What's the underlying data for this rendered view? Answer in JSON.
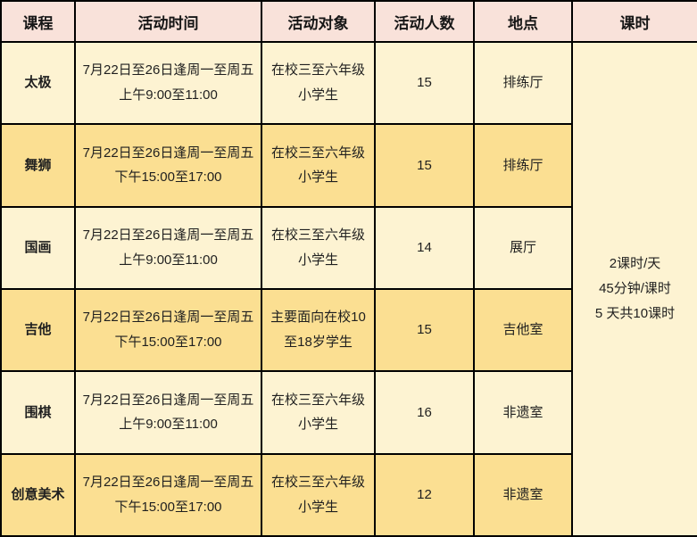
{
  "chart_data": {
    "type": "table",
    "columns": [
      "课程",
      "活动时间",
      "活动对象",
      "活动人数",
      "地点",
      "课时"
    ],
    "rows": [
      [
        "太极",
        "7月22日至26日逢周一至周五上午9:00至11:00",
        "在校三至六年级小学生",
        "15",
        "排练厅",
        "2课时/天 45分钟/课时 5 天共10课时"
      ],
      [
        "舞狮",
        "7月22日至26日逢周一至周五下午15:00至17:00",
        "在校三至六年级小学生",
        "15",
        "排练厅",
        "2课时/天 45分钟/课时 5 天共10课时"
      ],
      [
        "国画",
        "7月22日至26日逢周一至周五上午9:00至11:00",
        "在校三至六年级小学生",
        "14",
        "展厅",
        "2课时/天 45分钟/课时 5 天共10课时"
      ],
      [
        "吉他",
        "7月22日至26日逢周一至周五下午15:00至17:00",
        "主要面向在校10至18岁学生",
        "15",
        "吉他室",
        "2课时/天 45分钟/课时 5 天共10课时"
      ],
      [
        "围棋",
        "7月22日至26日逢周一至周五上午9:00至11:00",
        "在校三至六年级小学生",
        "16",
        "非遗室",
        "2课时/天 45分钟/课时 5 天共10课时"
      ],
      [
        "创意美术",
        "7月22日至26日逢周一至周五下午15:00至17:00",
        "在校三至六年级小学生",
        "12",
        "非遗室",
        "2课时/天 45分钟/课时 5 天共10课时"
      ]
    ],
    "layout_hints": {
      "hours_column_merged": "课时 column is one merged cell spanning all 6 body rows",
      "row_striping": "rows 1/3/5 cream, rows 2/4/6 gold"
    }
  },
  "table": {
    "headers": [
      "课程",
      "活动时间",
      "活动对象",
      "活动人数",
      "地点",
      "课时"
    ],
    "rows": [
      {
        "course": "太极",
        "time": "7月22日至26日逢周一至周五上午9:00至11:00",
        "target": "在校三至六年级小学生",
        "count": "15",
        "location": "排练厅"
      },
      {
        "course": "舞狮",
        "time": "7月22日至26日逢周一至周五下午15:00至17:00",
        "target": "在校三至六年级小学生",
        "count": "15",
        "location": "排练厅"
      },
      {
        "course": "国画",
        "time": "7月22日至26日逢周一至周五上午9:00至11:00",
        "target": "在校三至六年级小学生",
        "count": "14",
        "location": "展厅"
      },
      {
        "course": "吉他",
        "time": "7月22日至26日逢周一至周五下午15:00至17:00",
        "target": "主要面向在校10至18岁学生",
        "count": "15",
        "location": "吉他室"
      },
      {
        "course": "围棋",
        "time": "7月22日至26日逢周一至周五上午9:00至11:00",
        "target": "在校三至六年级小学生",
        "count": "16",
        "location": "非遗室"
      },
      {
        "course": "创意美术",
        "time": "7月22日至26日逢周一至周五下午15:00至17:00",
        "target": "在校三至六年级小学生",
        "count": "12",
        "location": "非遗室"
      }
    ],
    "hours": {
      "lines": [
        "2课时/天",
        "45分钟/课时",
        "5 天共10课时"
      ]
    },
    "colors": {
      "header_bg": "#f9e2da",
      "row_light_bg": "#fdf3d2",
      "row_gold_bg": "#fbdf92",
      "border": "#000000",
      "text": "#1f1f1f"
    }
  }
}
